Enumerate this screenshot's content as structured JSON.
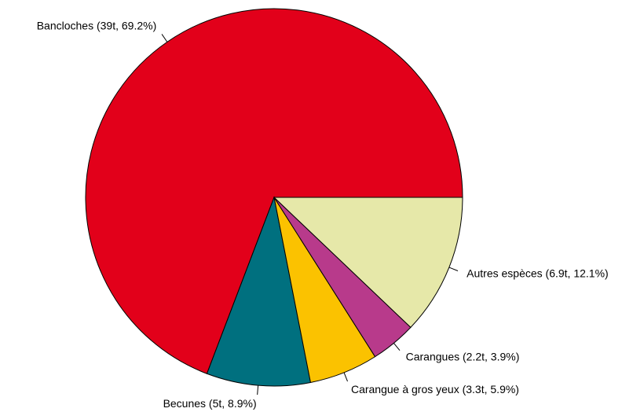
{
  "chart_data": {
    "type": "pie",
    "categories": [
      "Bancloches (39t, 69.2%)",
      "Becunes (5t, 8.9%)",
      "Carangue à gros yeux (3.3t, 5.9%)",
      "Carangues (2.2t, 3.9%)",
      "Autres espèces (6.9t, 12.1%)"
    ],
    "values": [
      69.2,
      8.9,
      5.9,
      3.9,
      12.1
    ],
    "colors": [
      "#e2001a",
      "#00707f",
      "#fbc200",
      "#b83a8b",
      "#e6e8a9"
    ]
  }
}
